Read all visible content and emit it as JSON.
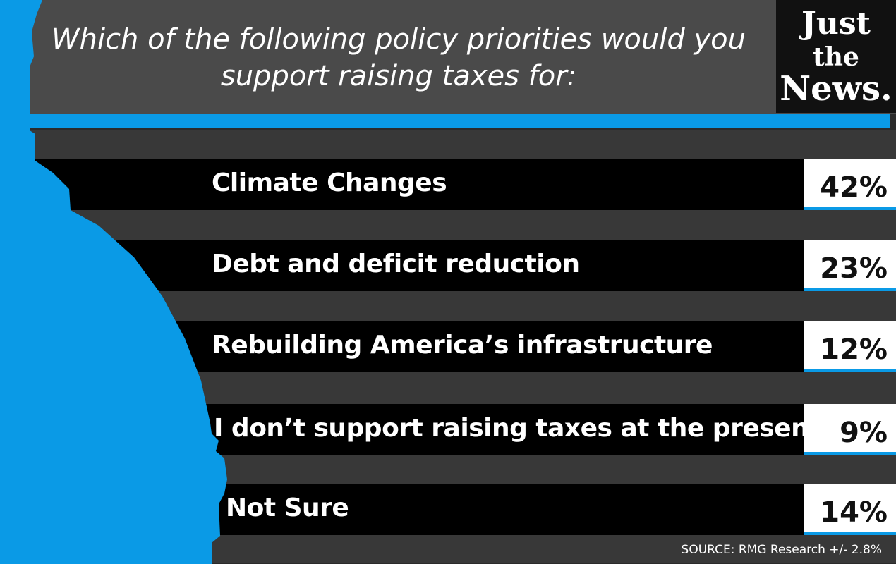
{
  "header": {
    "title": "Which of the following policy priorities would you support raising taxes for:"
  },
  "logo": {
    "lines": [
      "Just",
      "the",
      "News."
    ]
  },
  "rows": [
    {
      "label": "Climate Changes",
      "value": "42%"
    },
    {
      "label": "Debt and deficit reduction",
      "value": "23%"
    },
    {
      "label": "Rebuilding America’s infrastructure",
      "value": "12%"
    },
    {
      "label": "I don’t support raising taxes at the present time",
      "value": "9%"
    },
    {
      "label": "Not Sure",
      "value": "14%"
    }
  ],
  "source": "SOURCE: RMG Research +/- 2.8%"
}
